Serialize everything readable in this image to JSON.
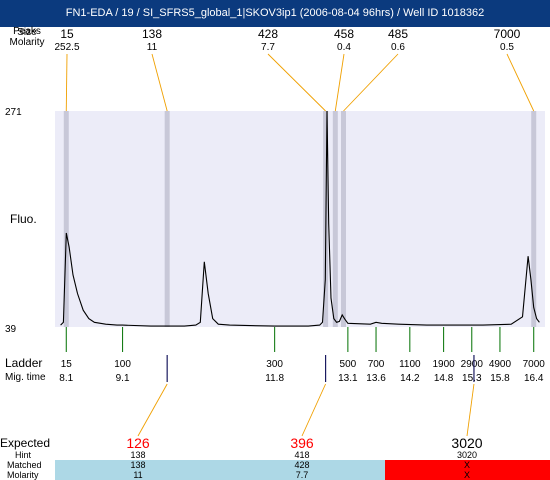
{
  "title": "FN1-EDA / 19 / SI_SFRS5_global_1|SKOV3ip1 (2006-08-04 96hrs) / Well ID 1018362",
  "top_row_labels": [
    "Peaks",
    "Size",
    "Molarity"
  ],
  "peak_labels": [
    {
      "size": "15",
      "molarity": "252.5"
    },
    {
      "size": "138",
      "molarity": "11"
    },
    {
      "size": "428",
      "molarity": "7.7"
    },
    {
      "size": "458",
      "molarity": "0.4"
    },
    {
      "size": "485",
      "molarity": "0.6"
    },
    {
      "size": "7000",
      "molarity": "0.5"
    }
  ],
  "y_label": "Fluo.",
  "y_max_label": "271",
  "y_min_label": "39",
  "ladder_label": "Ladder",
  "migtime_label": "Mig. time",
  "ladder": [
    {
      "size": "15",
      "time": "8.1"
    },
    {
      "size": "100",
      "time": "9.1"
    },
    {
      "size": "300",
      "time": "11.8"
    },
    {
      "size": "500",
      "time": "13.1"
    },
    {
      "size": "700",
      "time": "13.6"
    },
    {
      "size": "1100",
      "time": "14.2"
    },
    {
      "size": "1900",
      "time": "14.8"
    },
    {
      "size": "2900",
      "time": "15.3"
    },
    {
      "size": "4900",
      "time": "15.8"
    },
    {
      "size": "7000",
      "time": "16.4"
    }
  ],
  "bottom_labels": {
    "expected": "Expected",
    "hint": "Hint",
    "matched": "Matched",
    "molarity": "Molarity"
  },
  "expected": [
    {
      "expected": "126",
      "hint": "138",
      "matched": "138",
      "molarity": "11",
      "status_color": "#add8e6",
      "text_color": "#ff0000"
    },
    {
      "expected": "396",
      "hint": "418",
      "matched": "428",
      "molarity": "7.7",
      "status_color": "#add8e6",
      "text_color": "#ff0000"
    },
    {
      "expected": "3020",
      "hint": "3020",
      "matched": "X",
      "molarity": "X",
      "status_color": "#ff0000",
      "text_color": "#000000"
    }
  ],
  "colors": {
    "title_bg": "#0b3a7e",
    "plot_bg": "#ececf8",
    "peak_band": "#c8c8d8",
    "peak_connector": "#f0a000",
    "ladder_tick": "#007000",
    "trace": "#000000"
  },
  "chart_data": {
    "type": "line",
    "title": "FN1-EDA / 19 / SI_SFRS5_global_1|SKOV3ip1 (2006-08-04 96hrs) / Well ID 1018362",
    "xlabel": "",
    "ylabel": "Fluo.",
    "ylim": [
      39,
      271
    ],
    "x_scale": "size (bp), ladder-calibrated migration",
    "series": [
      {
        "name": "",
        "points": [
          [
            8.0,
            41
          ],
          [
            8.05,
            44
          ],
          [
            8.1,
            140
          ],
          [
            8.15,
            125
          ],
          [
            8.22,
            95
          ],
          [
            8.3,
            75
          ],
          [
            8.4,
            57
          ],
          [
            8.5,
            48
          ],
          [
            8.6,
            44
          ],
          [
            8.8,
            42
          ],
          [
            9.0,
            41
          ],
          [
            9.1,
            41
          ],
          [
            9.6,
            40
          ],
          [
            10.2,
            40
          ],
          [
            10.4,
            41
          ],
          [
            10.48,
            44
          ],
          [
            10.55,
            109
          ],
          [
            10.62,
            75
          ],
          [
            10.7,
            48
          ],
          [
            10.8,
            42
          ],
          [
            11.0,
            41
          ],
          [
            11.8,
            40
          ],
          [
            12.4,
            40
          ],
          [
            12.6,
            41
          ],
          [
            12.65,
            44
          ],
          [
            12.7,
            90
          ],
          [
            12.73,
            271
          ],
          [
            12.76,
            150
          ],
          [
            12.8,
            70
          ],
          [
            12.85,
            48
          ],
          [
            12.9,
            44
          ],
          [
            12.95,
            45
          ],
          [
            13.0,
            52
          ],
          [
            13.05,
            47
          ],
          [
            13.1,
            43
          ],
          [
            13.5,
            42
          ],
          [
            13.6,
            44
          ],
          [
            13.7,
            43
          ],
          [
            14.0,
            42
          ],
          [
            14.5,
            41
          ],
          [
            15.0,
            41
          ],
          [
            15.5,
            41
          ],
          [
            16.0,
            42
          ],
          [
            16.2,
            50
          ],
          [
            16.3,
            115
          ],
          [
            16.35,
            90
          ],
          [
            16.4,
            60
          ],
          [
            16.45,
            48
          ],
          [
            16.5,
            44
          ]
        ]
      }
    ],
    "peaks": [
      {
        "size": 15,
        "molarity": 252.5
      },
      {
        "size": 138,
        "molarity": 11
      },
      {
        "size": 428,
        "molarity": 7.7
      },
      {
        "size": 458,
        "molarity": 0.4
      },
      {
        "size": 485,
        "molarity": 0.6
      },
      {
        "size": 7000,
        "molarity": 0.5
      }
    ],
    "ladder": [
      {
        "size": 15,
        "time": 8.1
      },
      {
        "size": 100,
        "time": 9.1
      },
      {
        "size": 300,
        "time": 11.8
      },
      {
        "size": 500,
        "time": 13.1
      },
      {
        "size": 700,
        "time": 13.6
      },
      {
        "size": 1100,
        "time": 14.2
      },
      {
        "size": 1900,
        "time": 14.8
      },
      {
        "size": 2900,
        "time": 15.3
      },
      {
        "size": 4900,
        "time": 15.8
      },
      {
        "size": 7000,
        "time": 16.4
      }
    ],
    "expected": [
      {
        "expected": 126,
        "hint": 138,
        "matched": 138,
        "molarity": 11
      },
      {
        "expected": 396,
        "hint": 418,
        "matched": 428,
        "molarity": 7.7
      },
      {
        "expected": 3020,
        "hint": 3020,
        "matched": "X",
        "molarity": "X"
      }
    ],
    "grid": false,
    "legend": "none"
  }
}
